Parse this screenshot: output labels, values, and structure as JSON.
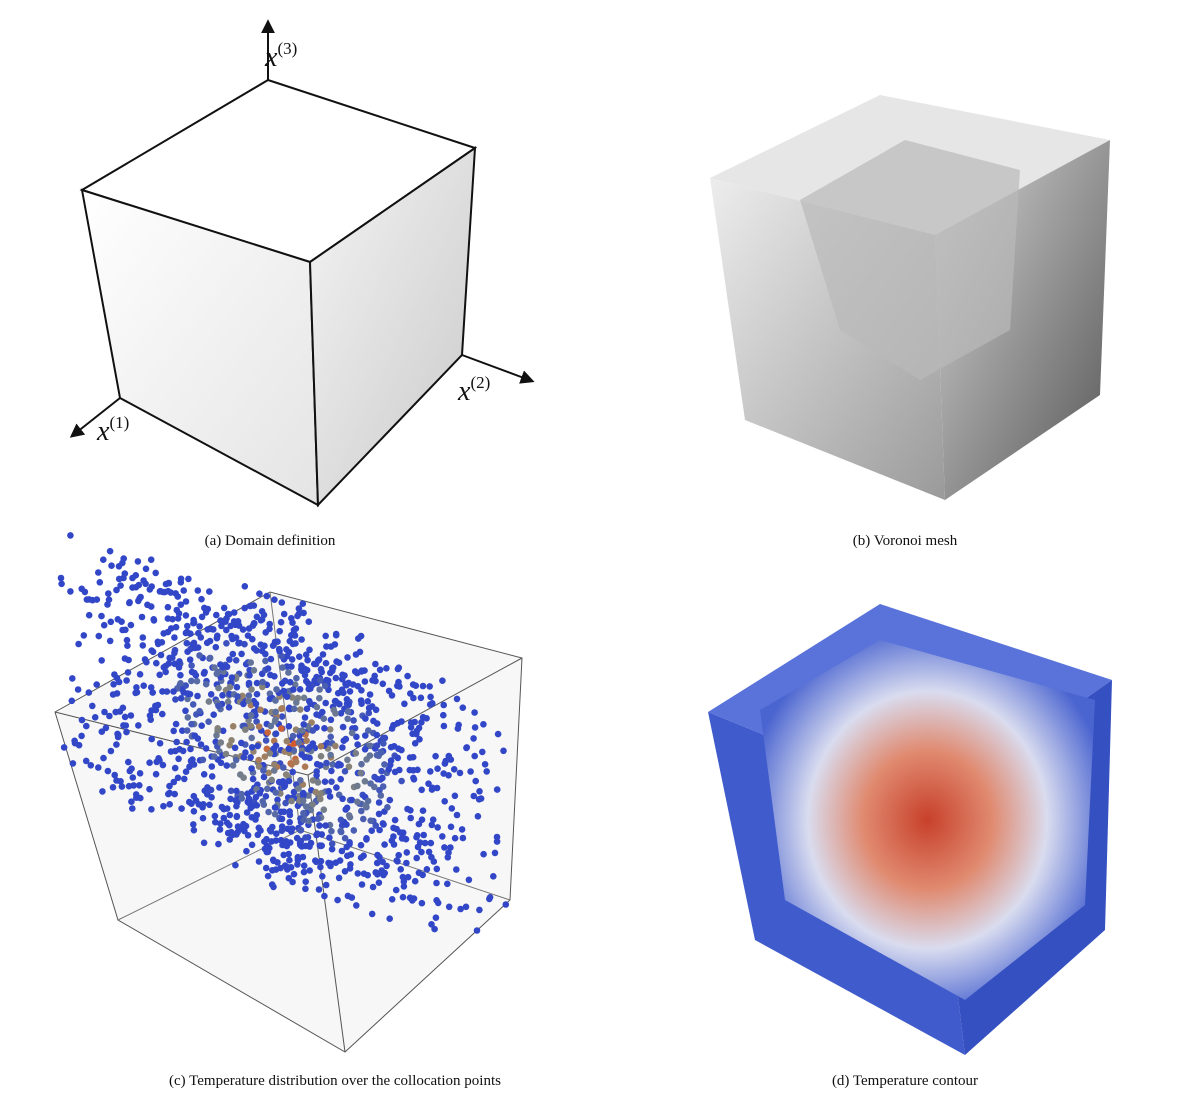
{
  "panels": [
    {
      "caption": "(a) Domain definition",
      "axes": [
        {
          "base": "x",
          "sup": "(3)"
        },
        {
          "base": "x",
          "sup": "(2)"
        },
        {
          "base": "x",
          "sup": "(1)"
        }
      ]
    },
    {
      "caption": "(b) Voronoi mesh"
    },
    {
      "caption": "(c) Temperature distribution over the collocation points"
    },
    {
      "caption": "(d) Temperature contour"
    }
  ]
}
